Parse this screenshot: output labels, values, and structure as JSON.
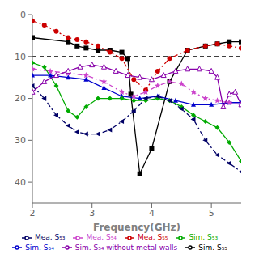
{
  "chart_data": {
    "type": "line",
    "xlabel": "Frequency(GHz)",
    "xlim": [
      2,
      5.5
    ],
    "xticks": [
      2,
      3,
      4,
      5
    ],
    "ylim": [
      45,
      0
    ],
    "yticks": [
      0,
      10,
      20,
      30,
      40
    ],
    "hline": 10,
    "grid": false,
    "legend": "bottom",
    "series": [
      {
        "name": "Sim. S₅₅",
        "color": "#000000",
        "line_style": "solid",
        "marker": "square",
        "x": [
          2.0,
          2.6,
          2.75,
          2.9,
          3.1,
          3.3,
          3.5,
          3.6,
          3.65,
          3.8,
          4.0,
          4.3,
          4.6,
          4.9,
          5.1,
          5.3,
          5.5
        ],
        "values": [
          5.5,
          6.5,
          7.5,
          8.0,
          8.5,
          8.5,
          9.0,
          10.5,
          19.0,
          38.0,
          32.0,
          16.0,
          8.5,
          7.5,
          7.0,
          6.5,
          6.5
        ]
      },
      {
        "name": "Mea. S₅₅",
        "color": "#cc0000",
        "line_style": "dashdot",
        "marker": "circle",
        "x": [
          2.0,
          2.2,
          2.4,
          2.6,
          2.75,
          2.9,
          3.1,
          3.3,
          3.5,
          3.7,
          3.9,
          4.1,
          4.3,
          4.6,
          4.9,
          5.1,
          5.3,
          5.5
        ],
        "values": [
          1.5,
          2.5,
          4.0,
          5.5,
          6.0,
          6.5,
          7.5,
          9.0,
          10.5,
          15.5,
          18.0,
          13.5,
          10.5,
          8.5,
          7.5,
          7.0,
          7.5,
          8.0
        ]
      },
      {
        "name": "Sim. S₅₄",
        "color": "#0000cc",
        "line_style": "solid",
        "marker": "triangle",
        "x": [
          2.0,
          2.3,
          2.6,
          2.9,
          3.2,
          3.5,
          3.8,
          4.1,
          4.4,
          4.7,
          5.0,
          5.3,
          5.5
        ],
        "values": [
          14.5,
          14.5,
          15.0,
          15.5,
          17.5,
          19.5,
          20.0,
          19.5,
          20.5,
          21.5,
          21.5,
          21.0,
          21.0
        ]
      },
      {
        "name": "Mea. S₅₄",
        "color": "#cc44cc",
        "line_style": "dashdot",
        "marker": "star",
        "x": [
          2.0,
          2.3,
          2.6,
          2.9,
          3.2,
          3.5,
          3.7,
          3.9,
          4.1,
          4.3,
          4.5,
          4.7,
          4.9,
          5.1,
          5.3,
          5.5
        ],
        "values": [
          13.0,
          13.5,
          14.0,
          14.5,
          16.0,
          18.5,
          19.5,
          18.5,
          17.0,
          16.0,
          16.5,
          18.5,
          20.0,
          20.5,
          21.0,
          21.5
        ]
      },
      {
        "name": "Sim. S₅₃",
        "color": "#00aa00",
        "line_style": "solid",
        "marker": "diamond",
        "x": [
          2.0,
          2.2,
          2.4,
          2.6,
          2.75,
          2.9,
          3.1,
          3.3,
          3.5,
          3.7,
          3.9,
          4.1,
          4.3,
          4.5,
          4.7,
          4.9,
          5.1,
          5.3,
          5.5
        ],
        "values": [
          11.5,
          12.5,
          17.0,
          23.0,
          24.5,
          22.0,
          20.0,
          20.0,
          20.0,
          20.5,
          20.5,
          20.0,
          20.5,
          22.0,
          24.0,
          25.5,
          27.0,
          30.5,
          35.0
        ]
      },
      {
        "name": "Mea. S₅₃",
        "color": "#000066",
        "line_style": "dashdot",
        "marker": "triangle-left",
        "x": [
          2.0,
          2.2,
          2.4,
          2.6,
          2.75,
          2.9,
          3.1,
          3.3,
          3.5,
          3.7,
          3.9,
          4.1,
          4.3,
          4.5,
          4.7,
          4.9,
          5.1,
          5.3,
          5.5
        ],
        "values": [
          17.0,
          20.0,
          24.0,
          26.5,
          28.0,
          28.5,
          28.5,
          27.5,
          25.5,
          23.0,
          20.0,
          19.5,
          20.5,
          22.5,
          25.0,
          30.0,
          33.5,
          35.5,
          37.5
        ]
      },
      {
        "name": "Sim. S₅₄ without metal walls",
        "color": "#8800aa",
        "line_style": "solid",
        "marker": "open-triangle",
        "x": [
          2.0,
          2.2,
          2.4,
          2.6,
          2.8,
          3.0,
          3.2,
          3.4,
          3.6,
          3.8,
          4.0,
          4.2,
          4.4,
          4.6,
          4.8,
          5.0,
          5.1,
          5.2,
          5.3,
          5.4,
          5.5
        ],
        "values": [
          18.5,
          16.0,
          14.5,
          13.5,
          12.5,
          12.0,
          12.5,
          13.5,
          14.5,
          15.0,
          15.5,
          14.5,
          13.5,
          13.0,
          13.0,
          13.5,
          15.0,
          22.0,
          19.0,
          18.5,
          21.5
        ]
      }
    ]
  }
}
